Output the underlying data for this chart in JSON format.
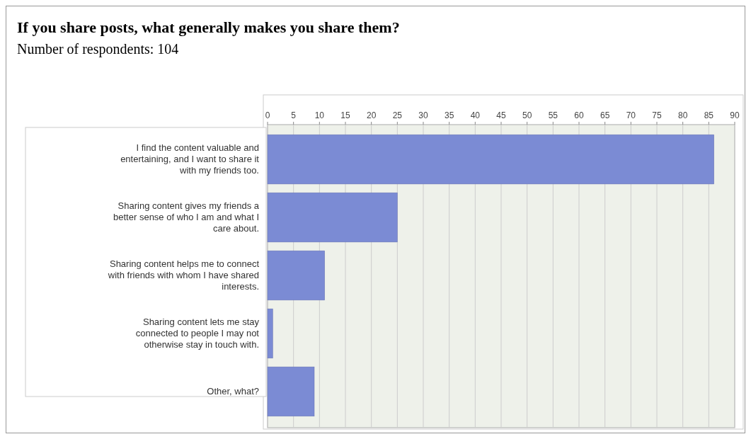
{
  "chart_data": {
    "type": "bar",
    "orientation": "horizontal",
    "title": "If you share posts, what generally makes you share them?",
    "subtitle": "Number of respondents: 104",
    "categories": [
      "I find the content valuable and entertaining, and I want to share it with my friends too.",
      "Sharing content gives my friends a better sense of who I am and what I care about.",
      "Sharing content helps me to connect with friends with whom I have shared interests.",
      "Sharing content lets me stay connected to people I may not otherwise stay in touch with.",
      "Other, what?"
    ],
    "values": [
      86,
      25,
      11,
      1,
      9
    ],
    "color": "#7b8bd4",
    "xlim": [
      0,
      90
    ],
    "xticks": [
      0,
      5,
      10,
      15,
      20,
      25,
      30,
      35,
      40,
      45,
      50,
      55,
      60,
      65,
      70,
      75,
      80,
      85,
      90
    ],
    "grid": "x"
  }
}
